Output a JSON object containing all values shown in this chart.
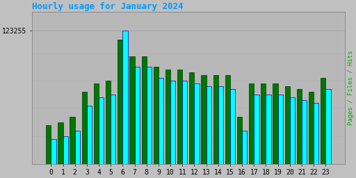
{
  "title": "Hourly usage for January 2024",
  "title_color": "#0099ff",
  "title_fontsize": 9,
  "hours": [
    0,
    1,
    2,
    3,
    4,
    5,
    6,
    7,
    8,
    9,
    10,
    11,
    12,
    13,
    14,
    15,
    16,
    17,
    18,
    19,
    20,
    21,
    22,
    23
  ],
  "hits": [
    84000,
    85000,
    87000,
    96000,
    99000,
    100000,
    123255,
    110000,
    110000,
    106000,
    105000,
    105000,
    104000,
    103000,
    103000,
    102000,
    87000,
    100000,
    100000,
    100000,
    99000,
    98000,
    97000,
    102000
  ],
  "files": [
    89000,
    90000,
    92000,
    101000,
    104000,
    105000,
    120000,
    114000,
    114000,
    110000,
    109000,
    109000,
    108000,
    107000,
    107000,
    107000,
    92000,
    104000,
    104000,
    104000,
    103000,
    102000,
    101000,
    106000
  ],
  "cyan_color": "#00ffff",
  "green_color": "#007700",
  "cyan_edge_color": "#0000aa",
  "green_edge_color": "#003300",
  "bg_color": "#c0c0c0",
  "plot_bg_color": "#b8b8b8",
  "ylabel_right": "Pages / Files / Hits",
  "ylabel_right_color": "#00aa00",
  "ytick_label": "123255",
  "ytick_val": 123255,
  "ylim_min": 75000,
  "ylim_max": 130000,
  "font_family": "monospace",
  "bar_width": 0.42,
  "tick_fontsize": 7
}
